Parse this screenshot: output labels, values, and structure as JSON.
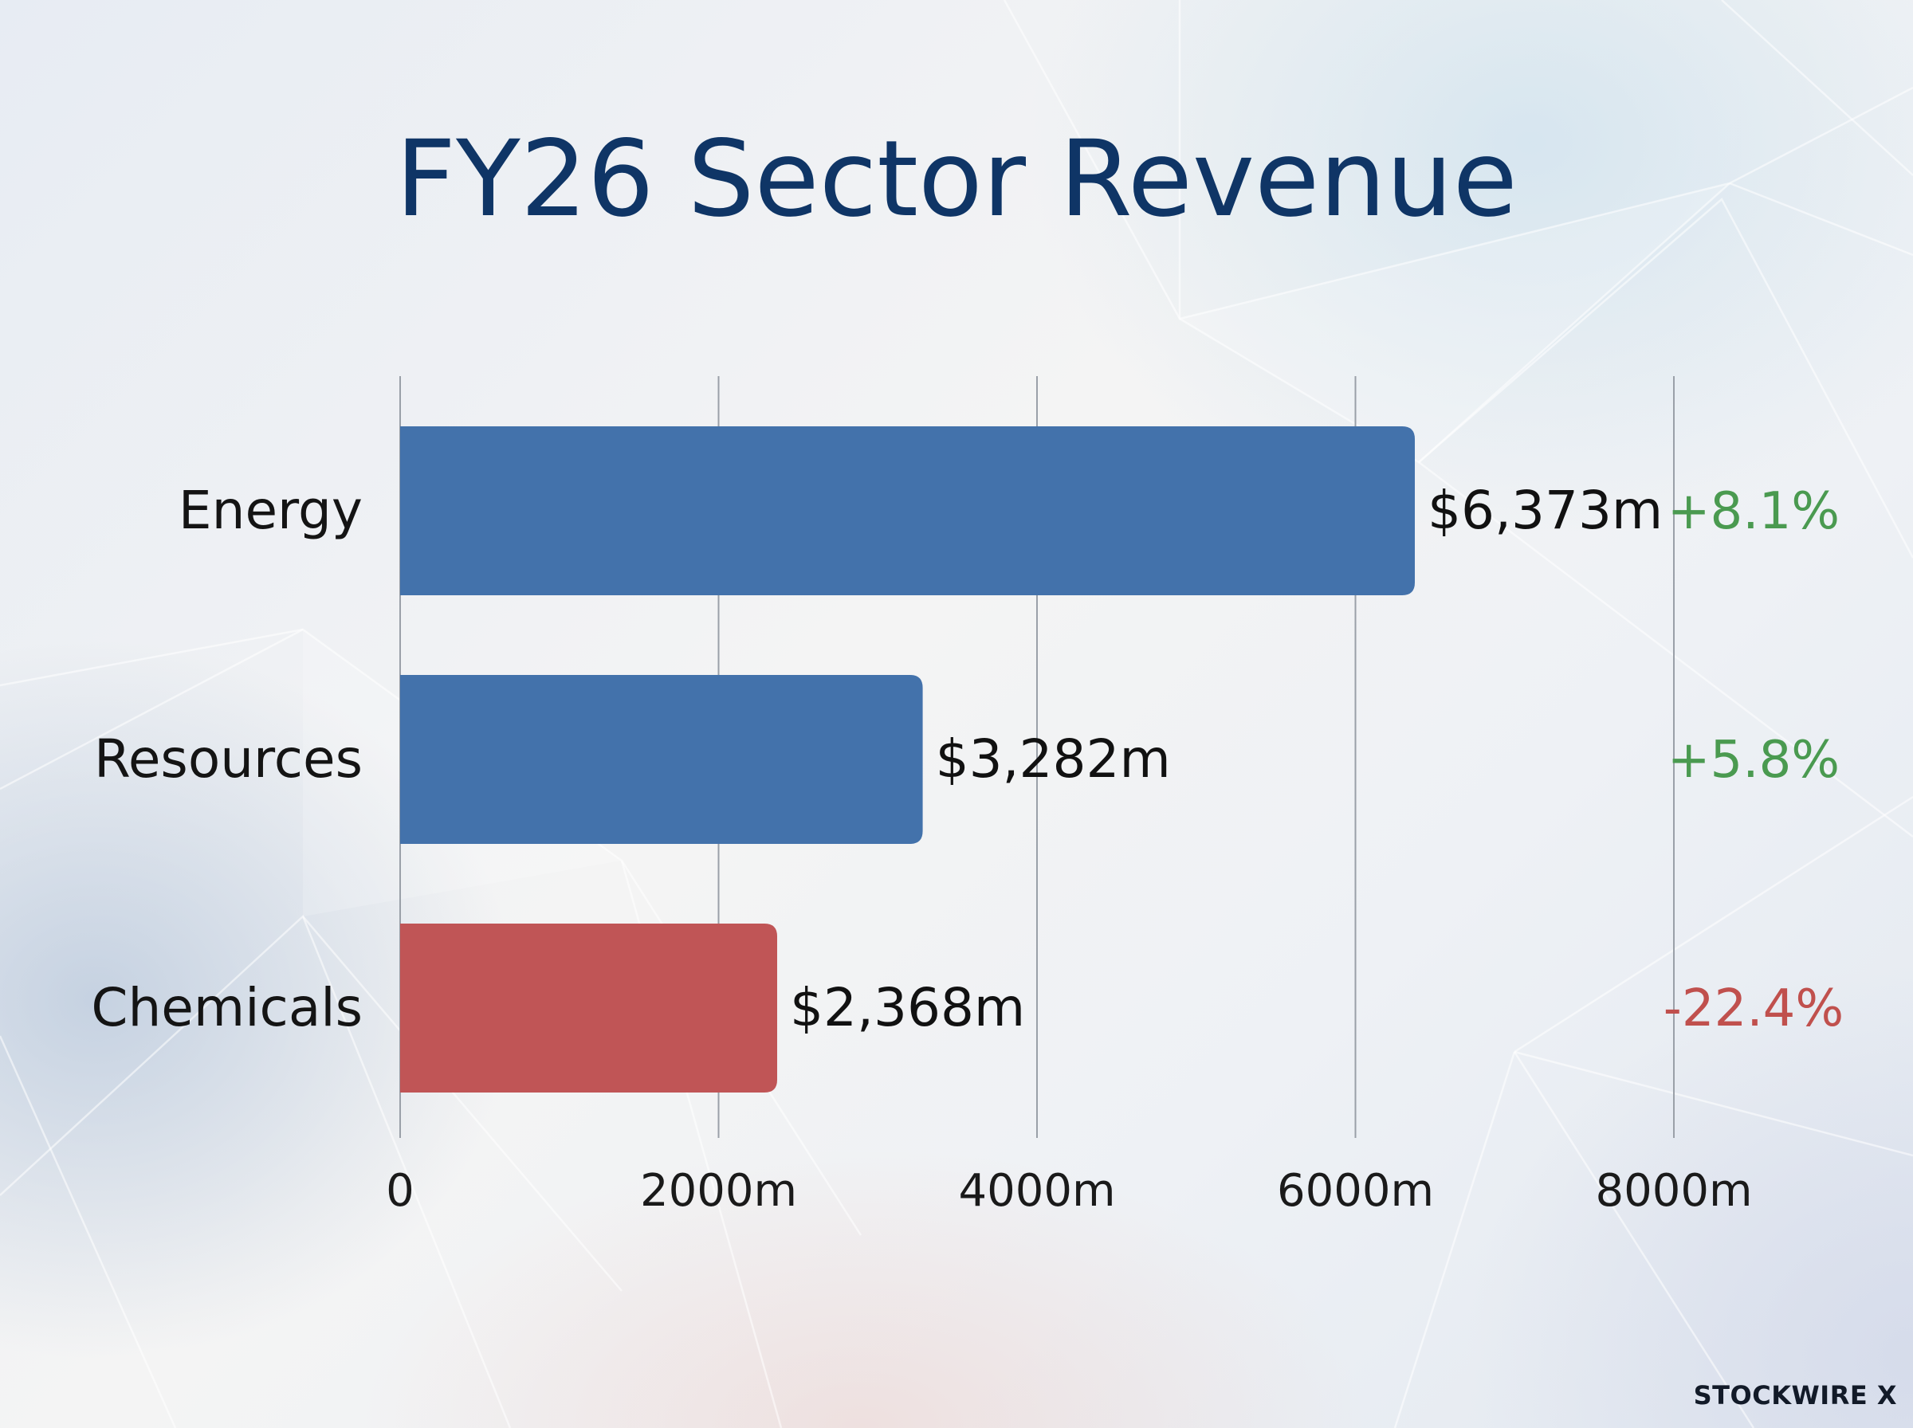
{
  "chart_data": {
    "type": "bar",
    "orientation": "horizontal",
    "title": "FY26 Sector Revenue",
    "categories": [
      "Energy",
      "Resources",
      "Chemicals"
    ],
    "values": [
      6373,
      3282,
      2368
    ],
    "value_labels": [
      "$6,373m",
      "$3,282m",
      "$2,368m"
    ],
    "changes": [
      "+8.1%",
      "+5.8%",
      "-22.4%"
    ],
    "change_colors": [
      "#4a9a50",
      "#4a9a50",
      "#c0504d"
    ],
    "bar_colors": [
      "#4372ab",
      "#4372ab",
      "#c05556"
    ],
    "xlim": [
      0,
      8000
    ],
    "xticks": [
      0,
      2000,
      4000,
      6000,
      8000
    ],
    "xtick_labels": [
      "0",
      "2000m",
      "4000m",
      "6000m",
      "8000m"
    ],
    "grid": true,
    "xlabel": "",
    "ylabel": ""
  },
  "brand": {
    "logo_text": "STOCKWIRE X"
  },
  "colors": {
    "title": "#0f3566",
    "positive": "#4a9a50",
    "negative": "#c0504d"
  }
}
